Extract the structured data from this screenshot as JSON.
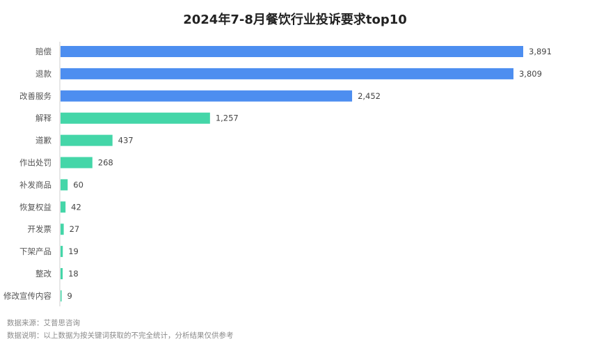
{
  "chart_data": {
    "type": "bar",
    "orientation": "horizontal",
    "title": "2024年7-8月餐饮行业投诉要求top10",
    "categories": [
      "赔偿",
      "退款",
      "改善服务",
      "解释",
      "道歉",
      "作出处罚",
      "补发商品",
      "恢复权益",
      "开发票",
      "下架产品",
      "整改",
      "修改宣传内容"
    ],
    "values": [
      3891,
      3809,
      2452,
      1257,
      437,
      268,
      60,
      42,
      27,
      19,
      18,
      9
    ],
    "value_labels": [
      "3,891",
      "3,809",
      "2,452",
      "1,257",
      "437",
      "268",
      "60",
      "42",
      "27",
      "19",
      "18",
      "9"
    ],
    "xlim": [
      0,
      3891
    ],
    "xlabel": "",
    "ylabel": "",
    "grid": false,
    "legend": "none",
    "colors": {
      "highlight": "#4d8ef0",
      "normal": "#44d6a8"
    },
    "highlight_count": 3
  },
  "notes": {
    "source": "数据来源：艾普思咨询",
    "explain": "数据说明：以上数据为按关键词获取的不完全统计，分析结果仅供参考"
  }
}
